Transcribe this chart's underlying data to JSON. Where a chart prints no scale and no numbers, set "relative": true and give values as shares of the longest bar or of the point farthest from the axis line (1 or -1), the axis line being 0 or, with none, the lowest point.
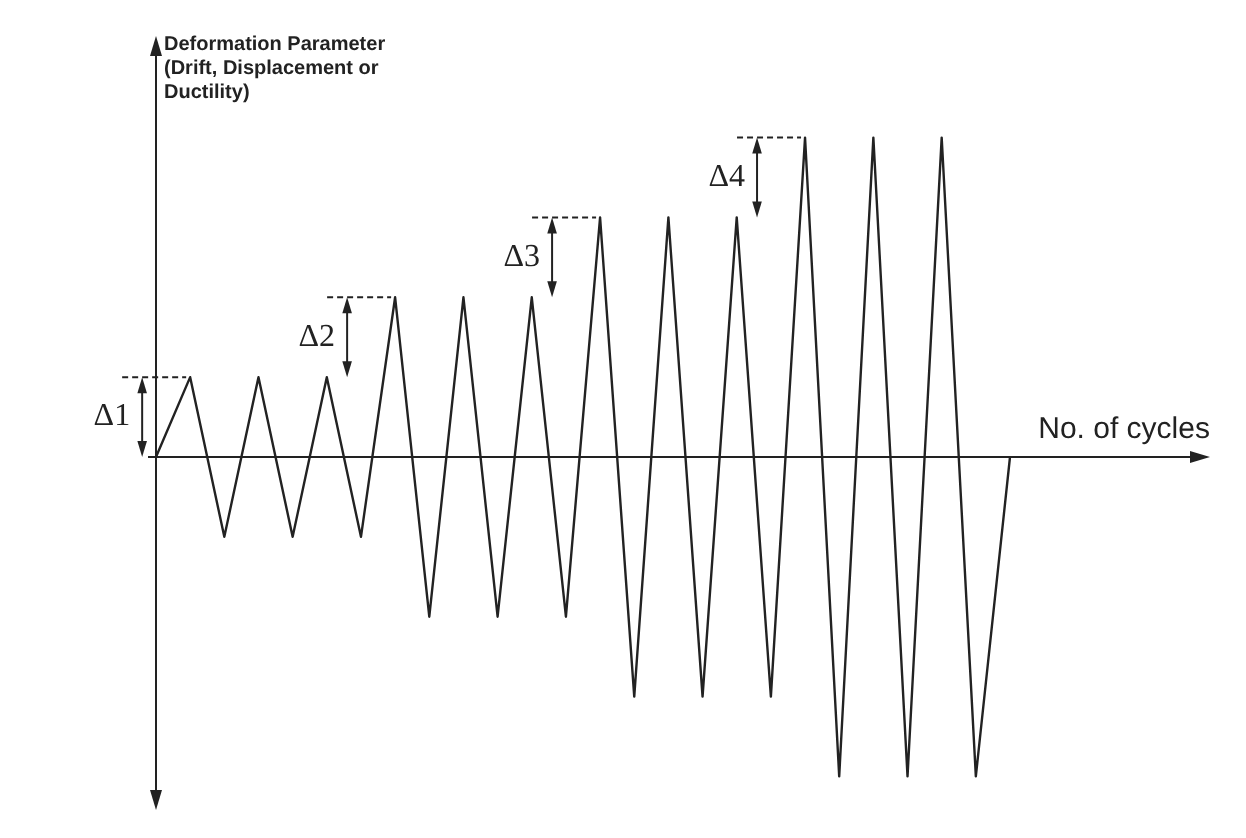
{
  "chart_data": {
    "type": "line",
    "relative": true,
    "xlabel": "No. of cycles",
    "ylabel": "Deformation Parameter (Drift, Displacement or Ductility)",
    "categories": [
      null,
      null,
      null,
      null,
      null,
      null,
      null,
      null,
      null,
      null,
      null,
      null,
      null,
      null,
      null,
      null,
      null,
      null,
      null,
      null,
      null,
      null,
      null,
      null,
      null,
      null
    ],
    "series": [
      {
        "color": "#222222",
        "values": [
          0,
          0.25,
          -0.25,
          0.25,
          -0.25,
          0.25,
          -0.25,
          0.5,
          -0.5,
          0.5,
          -0.5,
          0.5,
          -0.5,
          0.75,
          -0.75,
          0.75,
          -0.75,
          0.75,
          -0.75,
          1,
          -1,
          1,
          -1,
          1,
          -1,
          0
        ]
      }
    ],
    "annotations": [
      "Δ1",
      "Δ2",
      "Δ3",
      "Δ4"
    ],
    "marker": "none"
  }
}
